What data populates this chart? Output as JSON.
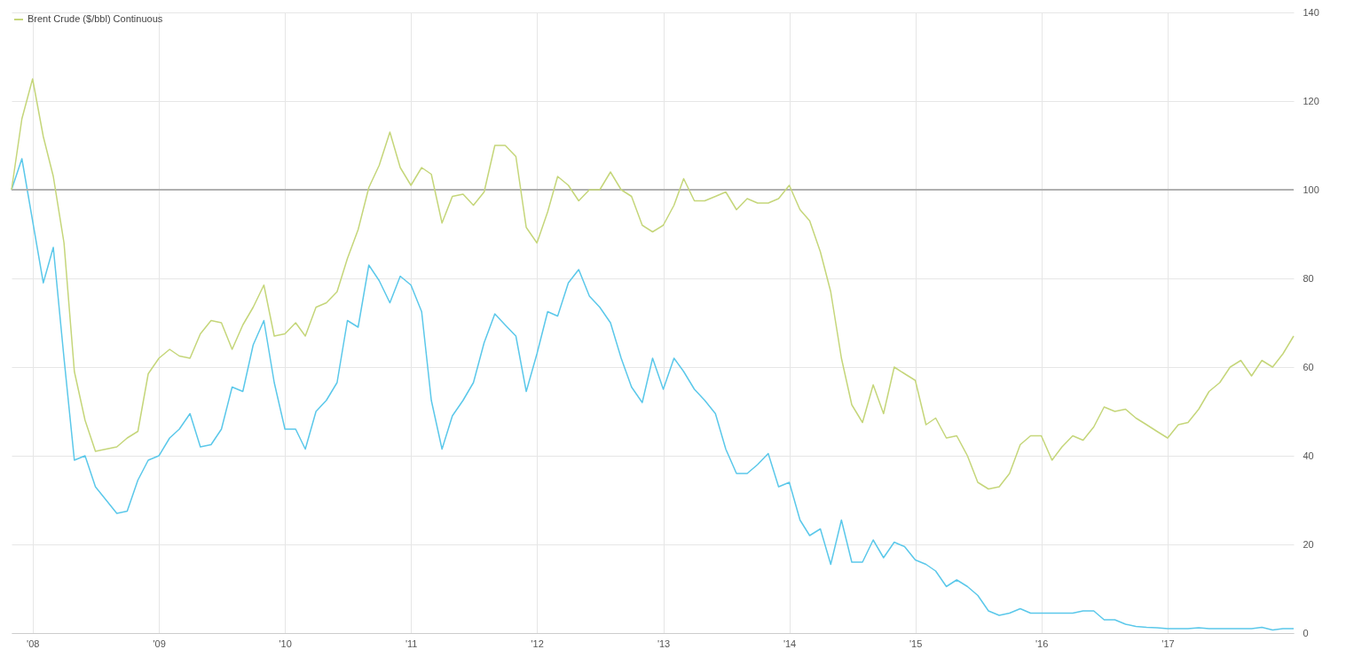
{
  "chart_data": {
    "type": "line",
    "legend": "top left",
    "grid": true,
    "marker": "none",
    "line_style": "solid",
    "x": [
      "2007-11",
      "2007-12",
      "2008-01",
      "2008-02",
      "2008-03",
      "2008-04",
      "2008-05",
      "2008-06",
      "2008-07",
      "2008-08",
      "2008-09",
      "2008-10",
      "2008-11",
      "2008-12",
      "2009-01",
      "2009-02",
      "2009-03",
      "2009-04",
      "2009-05",
      "2009-06",
      "2009-07",
      "2009-08",
      "2009-09",
      "2009-10",
      "2009-11",
      "2009-12",
      "2010-01",
      "2010-02",
      "2010-03",
      "2010-04",
      "2010-05",
      "2010-06",
      "2010-07",
      "2010-08",
      "2010-09",
      "2010-10",
      "2010-11",
      "2010-12",
      "2011-01",
      "2011-02",
      "2011-03",
      "2011-04",
      "2011-05",
      "2011-06",
      "2011-07",
      "2011-08",
      "2011-09",
      "2011-10",
      "2011-11",
      "2011-12",
      "2012-01",
      "2012-02",
      "2012-03",
      "2012-04",
      "2012-05",
      "2012-06",
      "2012-07",
      "2012-08",
      "2012-09",
      "2012-10",
      "2012-11",
      "2012-12",
      "2013-01",
      "2013-02",
      "2013-03",
      "2013-04",
      "2013-05",
      "2013-06",
      "2013-07",
      "2013-08",
      "2013-09",
      "2013-10",
      "2013-11",
      "2013-12",
      "2014-01",
      "2014-02",
      "2014-03",
      "2014-04",
      "2014-05",
      "2014-06",
      "2014-07",
      "2014-08",
      "2014-09",
      "2014-10",
      "2014-11",
      "2014-12",
      "2015-01",
      "2015-02",
      "2015-03",
      "2015-04",
      "2015-05",
      "2015-06",
      "2015-07",
      "2015-08",
      "2015-09",
      "2015-10",
      "2015-11",
      "2015-12",
      "2016-01",
      "2016-02",
      "2016-03",
      "2016-04",
      "2016-05",
      "2016-06",
      "2016-07",
      "2016-08",
      "2016-09",
      "2016-10",
      "2016-11",
      "2016-12",
      "2017-01",
      "2017-02",
      "2017-03",
      "2017-04",
      "2017-05",
      "2017-06",
      "2017-07",
      "2017-08",
      "2017-09",
      "2017-10",
      "2017-11",
      "2017-12",
      "2018-01"
    ],
    "series": [
      {
        "color": "#5bc8ea",
        "values": [
          100,
          107,
          93,
          79,
          87,
          62,
          39,
          40,
          33,
          30,
          27,
          27.5,
          34.5,
          39,
          40,
          44,
          46,
          49.5,
          42,
          42.5,
          46,
          55.5,
          54.5,
          65,
          70.5,
          56.5,
          46,
          46,
          41.5,
          50,
          52.5,
          56.5,
          70.5,
          69,
          83,
          79.5,
          74.5,
          80.5,
          78.5,
          72.5,
          52.5,
          41.5,
          49,
          52.5,
          56.5,
          65.5,
          72,
          69.5,
          67,
          54.5,
          63,
          72.5,
          71.5,
          79,
          82,
          76,
          73.5,
          70,
          62,
          55.5,
          52,
          62,
          55,
          62,
          59,
          55,
          52.5,
          49.5,
          41.5,
          36,
          36,
          38,
          40.5,
          33,
          34,
          25.5,
          22,
          23.5,
          15.5,
          25.5,
          16,
          16,
          21,
          17,
          20.5,
          19.5,
          16.5,
          15.5,
          14,
          10.5,
          12,
          10.5,
          8.5,
          5,
          4,
          4.5,
          5.5,
          4.5,
          4.5,
          4.5,
          4.5,
          4.5,
          5,
          5,
          3,
          3,
          2,
          1.5,
          1.3,
          1.2,
          1,
          1,
          1,
          1.2,
          1,
          1,
          1,
          1,
          1,
          1.3,
          0.7,
          1,
          1
        ]
      },
      {
        "name": "Brent Crude ($/bbl) Continuous",
        "color": "#c5d67a",
        "values": [
          100,
          116,
          125,
          112,
          103,
          88,
          59,
          48,
          41,
          41.5,
          42,
          44,
          45.5,
          58.5,
          62,
          64,
          62.5,
          62,
          67.5,
          70.5,
          70,
          64,
          69.5,
          73.5,
          78.5,
          67,
          67.5,
          70,
          67,
          73.5,
          74.5,
          77,
          84.5,
          91,
          100.5,
          105.5,
          113,
          105,
          101,
          105,
          103.5,
          92.5,
          98.5,
          99,
          96.5,
          99.5,
          110,
          110,
          107.5,
          91.5,
          88,
          95,
          103,
          101,
          97.5,
          100,
          100,
          104,
          100,
          98.5,
          92,
          90.5,
          92,
          96.5,
          102.5,
          97.5,
          97.5,
          98.5,
          99.5,
          95.5,
          98,
          97,
          97,
          98,
          101,
          95.5,
          93,
          86,
          77,
          62,
          51.5,
          47.5,
          56,
          49.5,
          60,
          58.5,
          57,
          47,
          48.5,
          44,
          44.5,
          40,
          34,
          32.5,
          33,
          36,
          42.5,
          44.5,
          44.5,
          39,
          42,
          44.5,
          43.5,
          46.5,
          51,
          50,
          50.5,
          48.5,
          47,
          45.5,
          44,
          47,
          47.5,
          50.5,
          54.5,
          56.5,
          60,
          61.5,
          58,
          61.5,
          60,
          63,
          67
        ]
      }
    ],
    "ylim": [
      0,
      140
    ],
    "yticks": [
      0,
      20,
      40,
      60,
      80,
      100,
      120,
      140
    ],
    "xlim": [
      "2007-11",
      "2018-01"
    ],
    "xticks": [
      {
        "value": "2008-01",
        "label": "'08"
      },
      {
        "value": "2009-01",
        "label": "'09"
      },
      {
        "value": "2010-01",
        "label": "'10"
      },
      {
        "value": "2011-01",
        "label": "'11"
      },
      {
        "value": "2012-01",
        "label": "'12"
      },
      {
        "value": "2013-01",
        "label": "'13"
      },
      {
        "value": "2014-01",
        "label": "'14"
      },
      {
        "value": "2015-01",
        "label": "'15"
      },
      {
        "value": "2016-01",
        "label": "'16"
      },
      {
        "value": "2017-01",
        "label": "'17"
      }
    ],
    "ref_lines": [
      {
        "axis": "y",
        "value": 100,
        "color": "#b0b0b0"
      }
    ]
  }
}
